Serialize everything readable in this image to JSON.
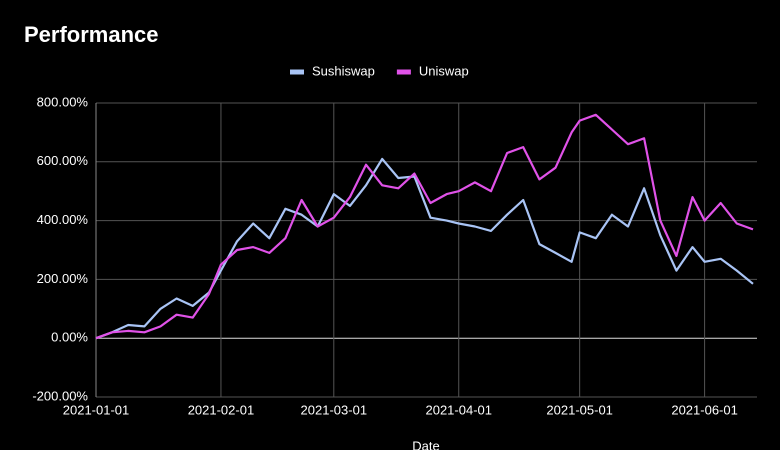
{
  "chart_data": {
    "type": "line",
    "title": "Performance",
    "x_label": "Date",
    "x": [
      "2021-01-01",
      "2021-01-05",
      "2021-01-09",
      "2021-01-13",
      "2021-01-17",
      "2021-01-21",
      "2021-01-25",
      "2021-01-29",
      "2021-02-01",
      "2021-02-05",
      "2021-02-09",
      "2021-02-13",
      "2021-02-17",
      "2021-02-21",
      "2021-02-25",
      "2021-03-01",
      "2021-03-05",
      "2021-03-09",
      "2021-03-13",
      "2021-03-17",
      "2021-03-21",
      "2021-03-25",
      "2021-03-29",
      "2021-04-01",
      "2021-04-05",
      "2021-04-09",
      "2021-04-13",
      "2021-04-17",
      "2021-04-21",
      "2021-04-25",
      "2021-04-29",
      "2021-05-01",
      "2021-05-05",
      "2021-05-09",
      "2021-05-13",
      "2021-05-17",
      "2021-05-21",
      "2021-05-25",
      "2021-05-29",
      "2021-06-01",
      "2021-06-05",
      "2021-06-09",
      "2021-06-13"
    ],
    "series": [
      {
        "name": "Sushiswap",
        "color": "#a9c4f5",
        "values": [
          0,
          20,
          45,
          40,
          100,
          135,
          110,
          155,
          230,
          330,
          390,
          340,
          440,
          420,
          380,
          490,
          450,
          520,
          610,
          545,
          550,
          410,
          400,
          390,
          380,
          365,
          420,
          470,
          320,
          290,
          260,
          360,
          340,
          420,
          380,
          510,
          350,
          230,
          310,
          260,
          270,
          230,
          185
        ]
      },
      {
        "name": "Uniswap",
        "color": "#e052e8",
        "values": [
          0,
          20,
          25,
          20,
          40,
          80,
          70,
          150,
          250,
          300,
          310,
          290,
          340,
          470,
          380,
          410,
          480,
          590,
          520,
          510,
          560,
          460,
          490,
          500,
          530,
          500,
          630,
          650,
          540,
          580,
          700,
          740,
          760,
          710,
          660,
          680,
          400,
          280,
          480,
          400,
          460,
          390,
          370
        ]
      }
    ],
    "xlim": [
      "2021-01-01",
      "2021-06-14"
    ],
    "xticks": [
      "2021-01-01",
      "2021-02-01",
      "2021-03-01",
      "2021-04-01",
      "2021-05-01",
      "2021-06-01"
    ],
    "ylim": [
      -200,
      800
    ],
    "yticks": [
      {
        "value": -200,
        "label": "-200.00%"
      },
      {
        "value": 0,
        "label": "0.00%"
      },
      {
        "value": 200,
        "label": "200.00%"
      },
      {
        "value": 400,
        "label": "400.00%"
      },
      {
        "value": 600,
        "label": "600.00%"
      },
      {
        "value": 800,
        "label": "800.00%"
      }
    ],
    "grid": true,
    "legend": "top"
  }
}
